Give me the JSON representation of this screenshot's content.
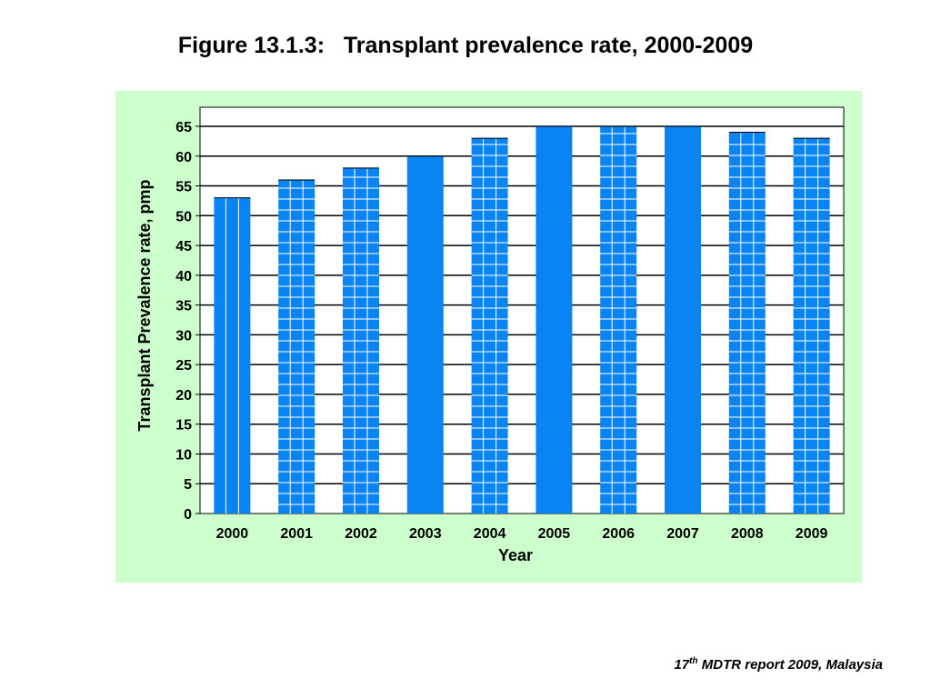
{
  "page": {
    "title": "Figure 13.1.3:   Transplant prevalence rate, 2000-2009",
    "source": {
      "pre": "17",
      "sup": "th",
      "post": " MDTR report 2009, Malaysia"
    }
  },
  "colors": {
    "panel": "#ccffcc",
    "bar": "#0a84f2",
    "bar_pattern": "#ffffff",
    "grid": "#000000"
  },
  "chart_data": {
    "type": "bar",
    "title": "Figure 13.1.3:   Transplant prevalence rate, 2000-2009",
    "xlabel": "Year",
    "ylabel": "Transplant Prevalence rate, pmp",
    "categories": [
      "2000",
      "2001",
      "2002",
      "2003",
      "2004",
      "2005",
      "2006",
      "2007",
      "2008",
      "2009"
    ],
    "values": [
      53,
      56,
      58,
      60,
      63,
      65,
      65,
      65,
      64,
      63
    ],
    "ylim": [
      0,
      65
    ],
    "yticks": [
      0,
      5,
      10,
      15,
      20,
      25,
      30,
      35,
      40,
      45,
      50,
      55,
      60,
      65
    ],
    "grid": true,
    "legend": "none"
  }
}
